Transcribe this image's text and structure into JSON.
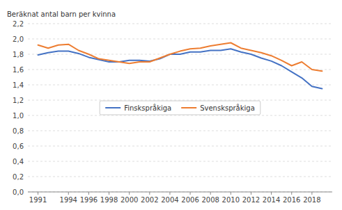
{
  "chart_data": {
    "type": "line",
    "y_label": "Beräknat antal barn per kvinna",
    "x": [
      1991,
      1992,
      1993,
      1994,
      1995,
      1996,
      1997,
      1998,
      1999,
      2000,
      2001,
      2002,
      2003,
      2004,
      2005,
      2006,
      2007,
      2008,
      2009,
      2010,
      2011,
      2012,
      2013,
      2014,
      2015,
      2016,
      2017,
      2018,
      2019
    ],
    "series": [
      {
        "name": "Finskspråkiga",
        "color": "#4472C4",
        "values": [
          1.79,
          1.82,
          1.84,
          1.84,
          1.81,
          1.76,
          1.73,
          1.7,
          1.7,
          1.72,
          1.72,
          1.71,
          1.74,
          1.8,
          1.8,
          1.83,
          1.83,
          1.85,
          1.85,
          1.87,
          1.83,
          1.8,
          1.75,
          1.71,
          1.65,
          1.57,
          1.49,
          1.38,
          1.35
        ]
      },
      {
        "name": "Svenskspråkiga",
        "color": "#ED7D31",
        "values": [
          1.92,
          1.88,
          1.92,
          1.93,
          1.85,
          1.8,
          1.74,
          1.72,
          1.7,
          1.68,
          1.7,
          1.7,
          1.75,
          1.8,
          1.84,
          1.87,
          1.88,
          1.91,
          1.93,
          1.95,
          1.88,
          1.85,
          1.82,
          1.78,
          1.72,
          1.65,
          1.7,
          1.6,
          1.58
        ]
      }
    ],
    "xlim": [
      1990,
      2020
    ],
    "xticks": [
      1991,
      1994,
      1996,
      1998,
      2000,
      2002,
      2004,
      2006,
      2008,
      2010,
      2012,
      2014,
      2016,
      2018
    ],
    "ylim": [
      0.0,
      2.2
    ],
    "yticks": [
      {
        "value": 0.0,
        "label": "0,0"
      },
      {
        "value": 0.2,
        "label": "0,2"
      },
      {
        "value": 0.4,
        "label": "0,4"
      },
      {
        "value": 0.6,
        "label": "0,6"
      },
      {
        "value": 0.8,
        "label": "0,8"
      },
      {
        "value": 1.0,
        "label": "1,0"
      },
      {
        "value": 1.2,
        "label": "1,2"
      },
      {
        "value": 1.4,
        "label": "1,4"
      },
      {
        "value": 1.6,
        "label": "1,6"
      },
      {
        "value": 1.8,
        "label": "1,8"
      },
      {
        "value": 2.0,
        "label": "2,0"
      },
      {
        "value": 2.2,
        "label": "2,2"
      }
    ],
    "grid": true,
    "legend": "center"
  }
}
